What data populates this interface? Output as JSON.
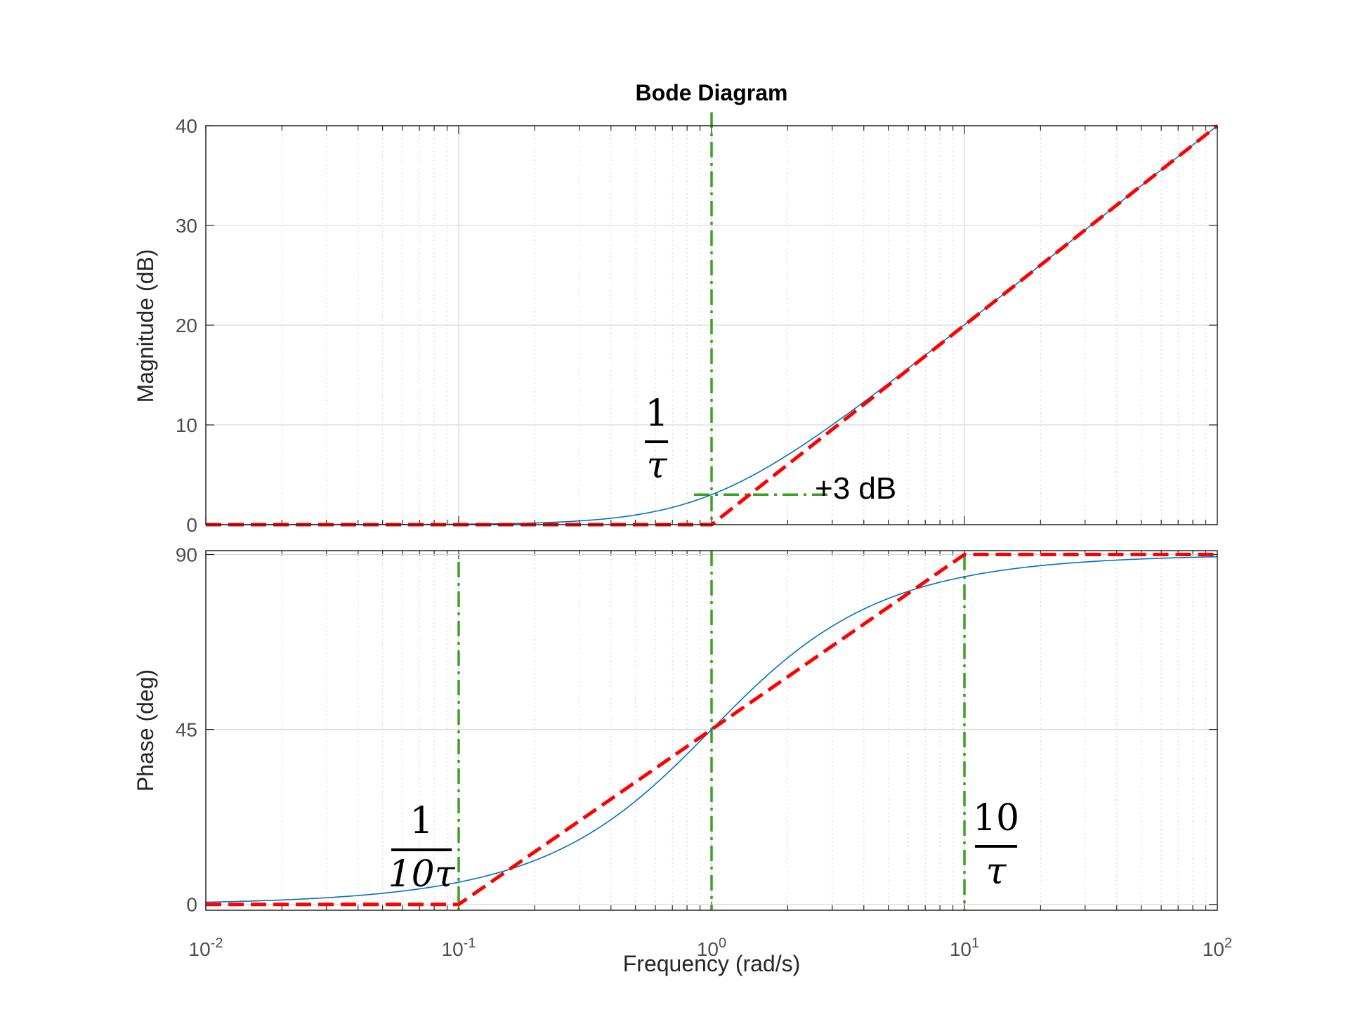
{
  "chart_data": {
    "title": "Bode Diagram",
    "type": "line",
    "xlabel": "Frequency  (rad/s)",
    "xscale": "log",
    "xlim": [
      0.01,
      100
    ],
    "x_ticks": [
      0.01,
      0.1,
      1,
      10,
      100
    ],
    "x_tick_labels": [
      {
        "base": "10",
        "exp": "-2"
      },
      {
        "base": "10",
        "exp": "-1"
      },
      {
        "base": "10",
        "exp": "0"
      },
      {
        "base": "10",
        "exp": "1"
      },
      {
        "base": "10",
        "exp": "2"
      }
    ],
    "grid": true,
    "colors": {
      "exact": "#0072bd",
      "asymptote": "#ff0000",
      "marker": "#3ca020",
      "grid": "#d9d9d9",
      "frame": "#262626"
    },
    "subplots": [
      {
        "name": "magnitude",
        "ylabel": "Magnitude (dB)",
        "ylim": [
          0,
          40
        ],
        "y_ticks": [
          0,
          10,
          20,
          30,
          40
        ],
        "series": [
          {
            "role": "exact",
            "style": "solid",
            "x": [
              0.01,
              0.1,
              0.3,
              0.5,
              1,
              2,
              3,
              5,
              10,
              100
            ],
            "y": [
              0,
              0.04,
              0.37,
              0.97,
              3.01,
              6.99,
              10,
              14.15,
              20.04,
              40
            ]
          },
          {
            "role": "asymptote",
            "style": "dashed",
            "x": [
              0.01,
              1,
              100
            ],
            "y": [
              0,
              0,
              40
            ]
          }
        ]
      },
      {
        "name": "phase",
        "ylabel": "Phase (deg)",
        "ylim": [
          -1.5,
          91
        ],
        "y_ticks": [
          0,
          45,
          90
        ],
        "series": [
          {
            "role": "exact",
            "style": "solid",
            "x": [
              0.01,
              0.1,
              0.3,
              0.5,
              1,
              2,
              3,
              5,
              10,
              30,
              100
            ],
            "y": [
              0.57,
              5.71,
              16.7,
              26.57,
              45,
              63.43,
              71.57,
              78.69,
              84.29,
              88.09,
              89.43
            ]
          },
          {
            "role": "asymptote",
            "style": "dashed",
            "x": [
              0.01,
              0.1,
              10,
              100
            ],
            "y": [
              0,
              0,
              90,
              90
            ]
          }
        ]
      }
    ],
    "annotations": [
      {
        "text": "+3 dB"
      },
      {
        "numerator": "1",
        "denominator": "τ"
      },
      {
        "numerator": "1",
        "denominator": "10τ"
      },
      {
        "numerator": "10",
        "denominator": "τ"
      }
    ]
  }
}
